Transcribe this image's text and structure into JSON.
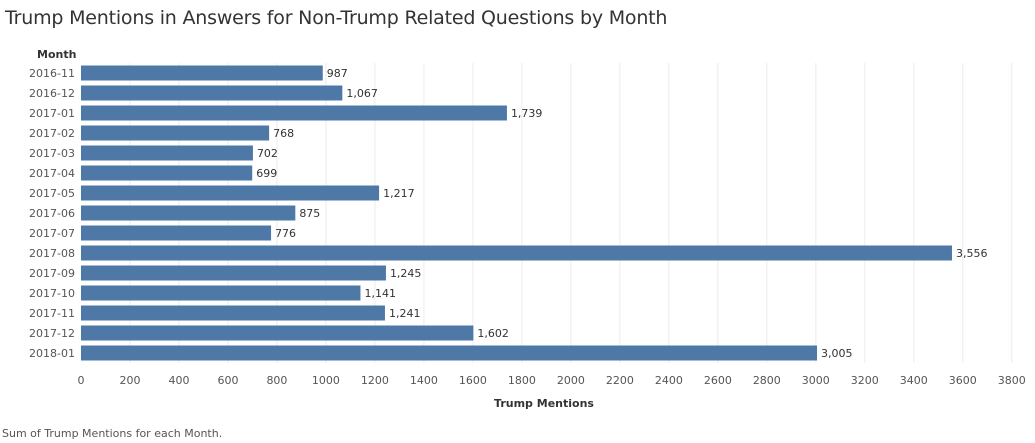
{
  "title": "Trump Mentions in Answers for Non-Trump Related Questions by Month",
  "footnote": "Sum of Trump Mentions for each Month.",
  "colors": {
    "bar": "#4e79a7",
    "grid": "#ececec",
    "text": "#333333",
    "axis_text": "#555555"
  },
  "chart_data": {
    "type": "bar",
    "orientation": "horizontal",
    "ylabel": "Month",
    "xlabel": "Trump Mentions",
    "categories": [
      "2016-11",
      "2016-12",
      "2017-01",
      "2017-02",
      "2017-03",
      "2017-04",
      "2017-05",
      "2017-06",
      "2017-07",
      "2017-08",
      "2017-09",
      "2017-10",
      "2017-11",
      "2017-12",
      "2018-01"
    ],
    "values": [
      987,
      1067,
      1739,
      768,
      702,
      699,
      1217,
      875,
      776,
      3556,
      1245,
      1141,
      1241,
      1602,
      3005
    ],
    "value_labels": [
      "987",
      "1,067",
      "1,739",
      "768",
      "702",
      "699",
      "1,217",
      "875",
      "776",
      "3,556",
      "1,245",
      "1,141",
      "1,241",
      "1,602",
      "3,005"
    ],
    "xticks": [
      0,
      200,
      400,
      600,
      800,
      1000,
      1200,
      1400,
      1600,
      1800,
      2000,
      2200,
      2400,
      2600,
      2800,
      3000,
      3200,
      3400,
      3600,
      3800
    ],
    "xlim": [
      0,
      3850
    ],
    "grid": true
  }
}
